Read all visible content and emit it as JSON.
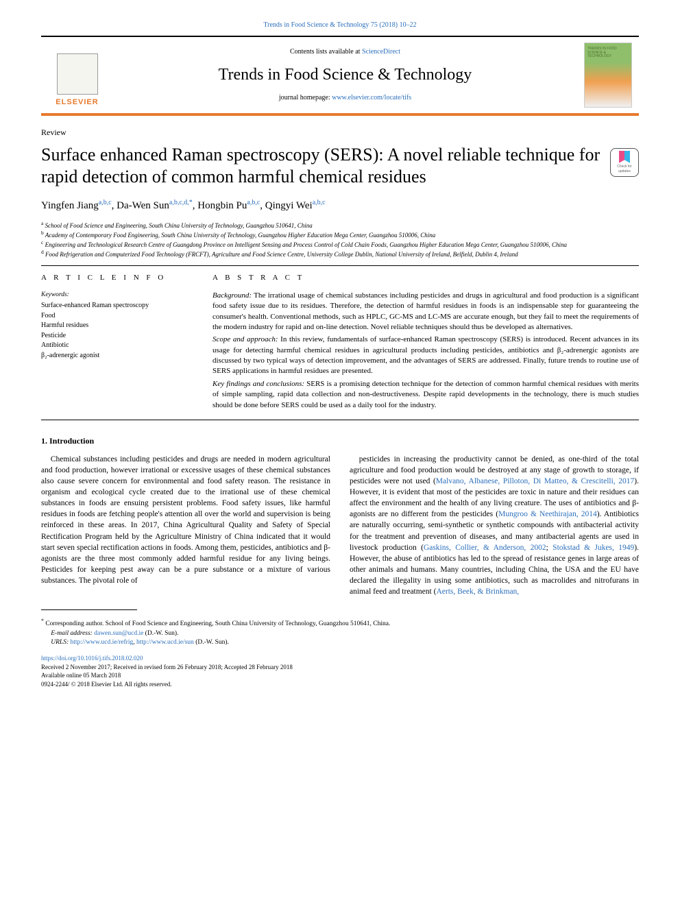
{
  "header": {
    "top_link_text": "Trends in Food Science & Technology 75 (2018) 10–22",
    "contents_line_prefix": "Contents lists available at ",
    "contents_line_link": "ScienceDirect",
    "journal_name": "Trends in Food Science & Technology",
    "journal_home_prefix": "journal homepage: ",
    "journal_home_url": "www.elsevier.com/locate/tifs",
    "elsevier_brand": "ELSEVIER",
    "thumb_title": "TRENDS IN FOOD SCIENCE & TECHNOLOGY",
    "colors": {
      "orange_rule": "#e7792b",
      "link_blue": "#2a6ebb"
    }
  },
  "check_updates": {
    "line1": "Check for",
    "line2": "updates"
  },
  "article": {
    "type": "Review",
    "title": "Surface enhanced Raman spectroscopy (SERS): A novel reliable technique for rapid detection of common harmful chemical residues",
    "authors_html": "Yingfen Jiang<sup><a>a</a>,<a>b</a>,<a>c</a></sup>, Da-Wen Sun<sup><a>a</a>,<a>b</a>,<a>c</a>,<a>d</a>,<a>*</a></sup>, Hongbin Pu<sup><a>a</a>,<a>b</a>,<a>c</a></sup>, Qingyi Wei<sup><a>a</a>,<a>b</a>,<a>c</a></sup>",
    "affiliations": [
      {
        "tag": "a",
        "text": "School of Food Science and Engineering, South China University of Technology, Guangzhou 510641, China"
      },
      {
        "tag": "b",
        "text": "Academy of Contemporary Food Engineering, South China University of Technology, Guangzhou Higher Education Mega Center, Guangzhou 510006, China"
      },
      {
        "tag": "c",
        "text": "Engineering and Technological Research Centre of Guangdong Province on Intelligent Sensing and Process Control of Cold Chain Foods, Guangzhou Higher Education Mega Center, Guangzhou 510006, China"
      },
      {
        "tag": "d",
        "text": "Food Refrigeration and Computerized Food Technology (FRCFT), Agriculture and Food Science Centre, University College Dublin, National University of Ireland, Belfield, Dublin 4, Ireland"
      }
    ]
  },
  "info": {
    "header": "A R T I C L E  I N F O",
    "keywords_label": "Keywords:",
    "keywords": [
      "Surface-enhanced Raman spectroscopy",
      "Food",
      "Harmful residues",
      "Pesticide",
      "Antibiotic",
      "β₂-adrenergic agonist"
    ]
  },
  "abstract": {
    "header": "A B S T R A C T",
    "paras": [
      {
        "run_in": "Background:",
        "text": " The irrational usage of chemical substances including pesticides and drugs in agricultural and food production is a significant food safety issue due to its residues. Therefore, the detection of harmful residues in foods is an indispensable step for guaranteeing the consumer's health. Conventional methods, such as HPLC, GC-MS and LC-MS are accurate enough, but they fail to meet the requirements of the modern industry for rapid and on-line detection. Novel reliable techniques should thus be developed as alternatives."
      },
      {
        "run_in": "Scope and approach:",
        "text": " In this review, fundamentals of surface-enhanced Raman spectroscopy (SERS) is introduced. Recent advances in its usage for detecting harmful chemical residues in agricultural products including pesticides, antibiotics and β₂-adrenergic agonists are discussed by two typical ways of detection improvement, and the advantages of SERS are addressed. Finally, future trends to routine use of SERS applications in harmful residues are presented."
      },
      {
        "run_in": "Key findings and conclusions:",
        "text": " SERS is a promising detection technique for the detection of common harmful chemical residues with merits of simple sampling, rapid data collection and non-destructiveness. Despite rapid developments in the technology, there is much studies should be done before SERS could be used as a daily tool for the industry."
      }
    ]
  },
  "body": {
    "section_number": "1.",
    "section_title": "Introduction",
    "col1_html": "Chemical substances including pesticides and drugs are needed in modern agricultural and food production, however irrational or excessive usages of these chemical substances also cause severe concern for environmental and food safety reason. The resistance in organism and ecological cycle created due to the irrational use of these chemical substances in foods are ensuing persistent problems. Food safety issues, like harmful residues in foods are fetching people's attention all over the world and supervision is being reinforced in these areas. In 2017, China Agricultural Quality and Safety of Special Rectification Program held by the Agriculture Ministry of China indicated that it would start seven special rectification actions in foods. Among them, pesticides, antibiotics and β-agonists are the three most commonly added harmful residue for any living beings. Pesticides for keeping pest away can be a pure substance or a mixture of various substances. The pivotal role of",
    "col2_html": "pesticides in increasing the productivity cannot be denied, as one-third of the total agriculture and food production would be destroyed at any stage of growth to storage, if pesticides were not used (<a>Malvano, Albanese, Pilloton, Di Matteo, &amp; Crescitelli, 2017</a>). However, it is evident that most of the pesticides are toxic in nature and their residues can affect the environment and the health of any living creature. The uses of antibiotics and β-agonists are no different from the pesticides (<a>Mungroo &amp; Neethirajan, 2014</a>). Antibiotics are naturally occurring, semi-synthetic or synthetic compounds with antibacterial activity for the treatment and prevention of diseases, and many antibacterial agents are used in livestock production (<a>Gaskins, Collier, &amp; Anderson, 2002</a>; <a>Stokstad &amp; Jukes, 1949</a>). However, the abuse of antibiotics has led to the spread of resistance genes in large areas of other animals and humans. Many countries, including China, the USA and the EU have declared the illegality in using some antibiotics, such as macrolides and nitrofurans in animal feed and treatment (<a>Aerts, Beek, &amp; Brinkman,</a>"
  },
  "footnotes": {
    "corr": "Corresponding author. School of Food Science and Engineering, South China University of Technology, Guangzhou 510641, China.",
    "email_label": "E-mail address:",
    "email": "dawen.sun@ucd.ie",
    "email_suffix": " (D.-W. Sun).",
    "urls_label": "URLS:",
    "url1": "http://www.ucd.ie/refrig",
    "url2": "http://www.ucd.ie/sun",
    "urls_suffix": " (D.-W. Sun)."
  },
  "doi": {
    "doi_url": "https://doi.org/10.1016/j.tifs.2018.02.020",
    "dates": "Received 2 November 2017; Received in revised form 26 February 2018; Accepted 28 February 2018",
    "online": "Available online 05 March 2018",
    "copyright": "0924-2244/ © 2018 Elsevier Ltd. All rights reserved."
  }
}
